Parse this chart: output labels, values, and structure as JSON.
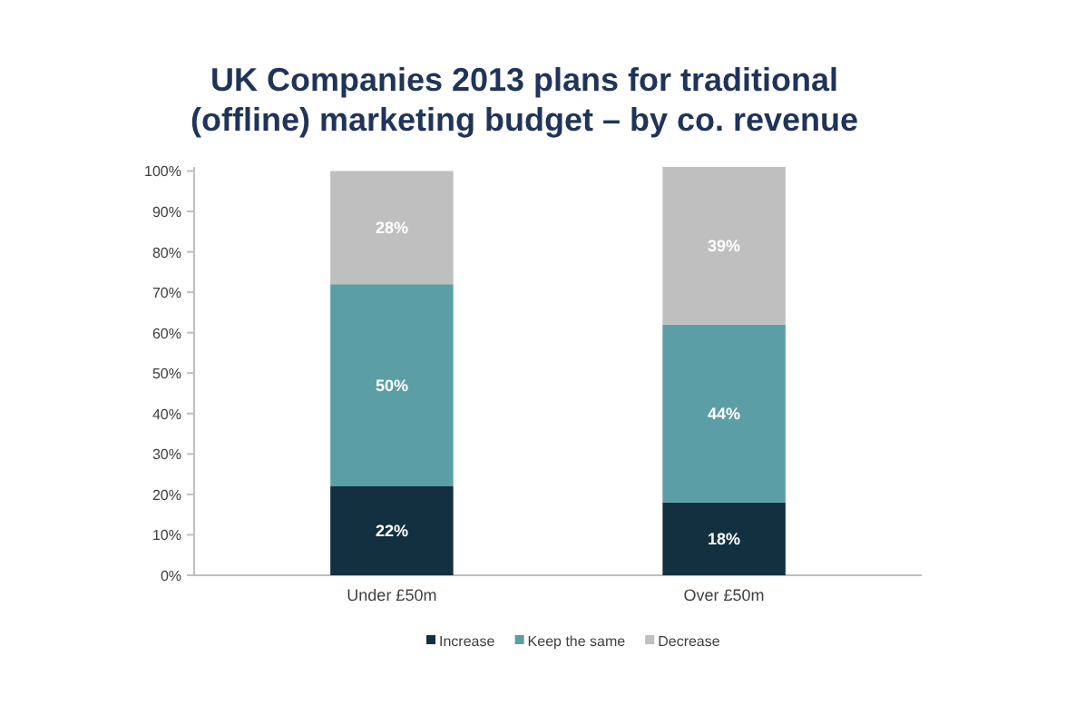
{
  "chart_data": {
    "type": "bar",
    "stacked": true,
    "title": "UK Companies 2013 plans for traditional (offline) marketing budget – by co. revenue",
    "categories": [
      "Under £50m",
      "Over £50m"
    ],
    "series": [
      {
        "name": "Increase",
        "color": "#12303f",
        "values": [
          22,
          18
        ],
        "value_labels": [
          "22%",
          "18%"
        ]
      },
      {
        "name": "Keep the same",
        "color": "#5b9ea6",
        "values": [
          50,
          44
        ],
        "value_labels": [
          "50%",
          "44%"
        ]
      },
      {
        "name": "Decrease",
        "color": "#bfbfbf",
        "values": [
          28,
          39
        ],
        "value_labels": [
          "28%",
          "39%"
        ]
      }
    ],
    "ylim": [
      0,
      101
    ],
    "yticks": [
      {
        "value": 0,
        "label": "0%"
      },
      {
        "value": 10,
        "label": "10%"
      },
      {
        "value": 20,
        "label": "20%"
      },
      {
        "value": 30,
        "label": "30%"
      },
      {
        "value": 40,
        "label": "40%"
      },
      {
        "value": 50,
        "label": "50%"
      },
      {
        "value": 60,
        "label": "60%"
      },
      {
        "value": 70,
        "label": "70%"
      },
      {
        "value": 80,
        "label": "80%"
      },
      {
        "value": 90,
        "label": "90%"
      },
      {
        "value": 100,
        "label": "100%"
      }
    ],
    "grid": false,
    "legend": "bottom"
  }
}
